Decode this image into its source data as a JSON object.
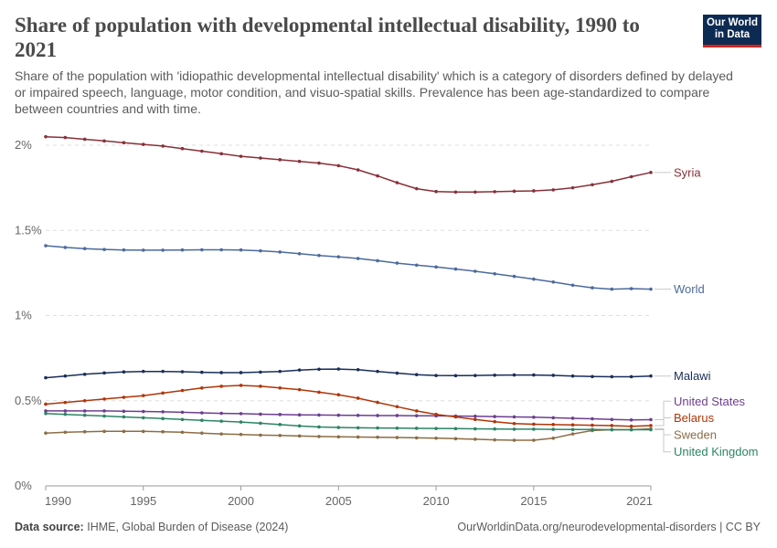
{
  "header": {
    "title": "Share of population with developmental intellectual disability, 1990 to 2021",
    "subtitle": "Share of the population with 'idiopathic developmental intellectual disability' which is a category of disorders defined by delayed or impaired speech, language, motor condition, and visuo-spatial skills. Prevalence has been age-standardized to compare between countries and with time."
  },
  "logo": {
    "line1": "Our World",
    "line2": "in Data",
    "bg_color": "#0d2b52",
    "accent_color": "#ce261e"
  },
  "footer": {
    "source_label": "Data source:",
    "source_text": "IHME, Global Burden of Disease (2024)",
    "url_text": "OurWorldinData.org/neurodevelopmental-disorders | CC BY"
  },
  "chart_data": {
    "type": "line",
    "x": [
      1990,
      1991,
      1992,
      1993,
      1994,
      1995,
      1996,
      1997,
      1998,
      1999,
      2000,
      2001,
      2002,
      2003,
      2004,
      2005,
      2006,
      2007,
      2008,
      2009,
      2010,
      2011,
      2012,
      2013,
      2014,
      2015,
      2016,
      2017,
      2018,
      2019,
      2020,
      2021
    ],
    "xlim": [
      1990,
      2021
    ],
    "ylim": [
      0,
      2
    ],
    "x_ticks": [
      1990,
      1995,
      2000,
      2005,
      2010,
      2015,
      2021
    ],
    "y_ticks": [
      {
        "value": 0,
        "label": "0%"
      },
      {
        "value": 0.5,
        "label": "0.5%"
      },
      {
        "value": 1,
        "label": "1%"
      },
      {
        "value": 1.5,
        "label": "1.5%"
      },
      {
        "value": 2,
        "label": "2%"
      }
    ],
    "grid": "horizontal-dashed",
    "legend": "right-end-labels",
    "series": [
      {
        "name": "Syria",
        "color": "#883039",
        "label_y": 1.84,
        "values": [
          2.05,
          2.045,
          2.035,
          2.025,
          2.015,
          2.005,
          1.995,
          1.98,
          1.965,
          1.95,
          1.935,
          1.925,
          1.915,
          1.905,
          1.895,
          1.88,
          1.855,
          1.82,
          1.78,
          1.745,
          1.728,
          1.725,
          1.725,
          1.727,
          1.73,
          1.732,
          1.738,
          1.75,
          1.768,
          1.788,
          1.815,
          1.84
        ]
      },
      {
        "name": "World",
        "color": "#4c6a9c",
        "label_y": 1.155,
        "values": [
          1.41,
          1.4,
          1.393,
          1.388,
          1.385,
          1.384,
          1.384,
          1.385,
          1.386,
          1.386,
          1.385,
          1.38,
          1.373,
          1.363,
          1.353,
          1.345,
          1.335,
          1.322,
          1.308,
          1.296,
          1.285,
          1.273,
          1.26,
          1.245,
          1.23,
          1.214,
          1.197,
          1.178,
          1.163,
          1.155,
          1.158,
          1.155
        ]
      },
      {
        "name": "Malawi",
        "color": "#1a2e59",
        "label_y": 0.645,
        "values": [
          0.635,
          0.645,
          0.655,
          0.663,
          0.669,
          0.672,
          0.672,
          0.67,
          0.667,
          0.665,
          0.665,
          0.668,
          0.672,
          0.68,
          0.685,
          0.686,
          0.682,
          0.672,
          0.662,
          0.653,
          0.648,
          0.647,
          0.648,
          0.65,
          0.651,
          0.651,
          0.649,
          0.645,
          0.642,
          0.641,
          0.641,
          0.645
        ]
      },
      {
        "name": "United States",
        "color": "#6d3e91",
        "label_y": 0.497,
        "values": [
          0.44,
          0.44,
          0.44,
          0.44,
          0.438,
          0.437,
          0.435,
          0.432,
          0.429,
          0.426,
          0.424,
          0.421,
          0.419,
          0.417,
          0.416,
          0.415,
          0.414,
          0.413,
          0.413,
          0.412,
          0.411,
          0.41,
          0.409,
          0.407,
          0.405,
          0.403,
          0.4,
          0.397,
          0.394,
          0.39,
          0.387,
          0.389
        ]
      },
      {
        "name": "Belarus",
        "color": "#b13507",
        "label_y": 0.4,
        "values": [
          0.48,
          0.49,
          0.5,
          0.51,
          0.52,
          0.53,
          0.545,
          0.56,
          0.575,
          0.585,
          0.59,
          0.585,
          0.575,
          0.565,
          0.55,
          0.535,
          0.515,
          0.49,
          0.465,
          0.44,
          0.42,
          0.405,
          0.39,
          0.377,
          0.366,
          0.362,
          0.36,
          0.358,
          0.356,
          0.354,
          0.35,
          0.354
        ]
      },
      {
        "name": "Sweden",
        "color": "#8c6d45",
        "label_y": 0.3,
        "values": [
          0.31,
          0.315,
          0.318,
          0.32,
          0.32,
          0.32,
          0.318,
          0.315,
          0.31,
          0.305,
          0.302,
          0.298,
          0.296,
          0.293,
          0.29,
          0.288,
          0.287,
          0.286,
          0.284,
          0.282,
          0.28,
          0.277,
          0.274,
          0.27,
          0.268,
          0.268,
          0.28,
          0.305,
          0.325,
          0.33,
          0.33,
          0.335
        ]
      },
      {
        "name": "United Kingdom",
        "color": "#2c8465",
        "label_y": 0.2,
        "values": [
          0.425,
          0.42,
          0.415,
          0.41,
          0.405,
          0.4,
          0.395,
          0.39,
          0.385,
          0.38,
          0.375,
          0.368,
          0.36,
          0.352,
          0.346,
          0.343,
          0.341,
          0.34,
          0.339,
          0.338,
          0.337,
          0.336,
          0.335,
          0.334,
          0.333,
          0.333,
          0.332,
          0.331,
          0.331,
          0.33,
          0.33,
          0.33
        ]
      }
    ]
  }
}
